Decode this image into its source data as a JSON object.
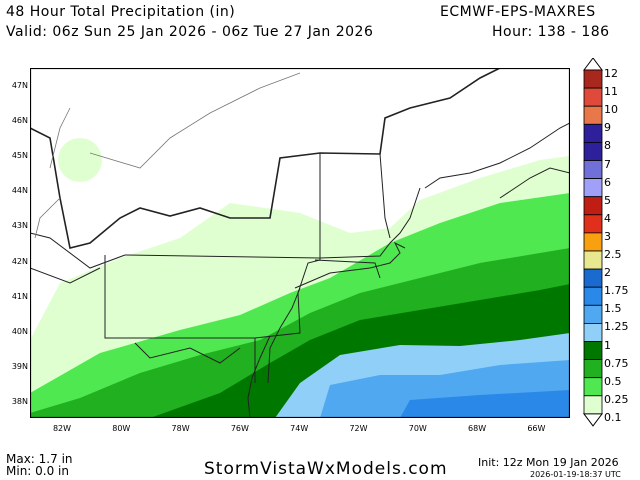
{
  "header": {
    "title": "48 Hour Total Precipitation (in)",
    "valid": "Valid: 06z Sun 25 Jan 2026 - 06z Tue 27 Jan 2026",
    "model": "ECMWF-EPS-MAXRES",
    "hours": "Hour: 138 - 186"
  },
  "map": {
    "lat_labels": [
      "47N",
      "46N",
      "45N",
      "44N",
      "43N",
      "42N",
      "41N",
      "40N",
      "39N",
      "38N"
    ],
    "lon_labels": [
      "82W",
      "80W",
      "78W",
      "76W",
      "74W",
      "72W",
      "70W",
      "68W",
      "66W"
    ]
  },
  "colorbar": {
    "labels": [
      "12",
      "11",
      "10",
      "9",
      "8",
      "7",
      "6",
      "5",
      "4",
      "3",
      "2.5",
      "2",
      "1.75",
      "1.5",
      "1.25",
      "1",
      "0.75",
      "0.5",
      "0.25",
      "0.1"
    ],
    "colors": [
      "#a8281e",
      "#e04a3a",
      "#e8784a",
      "#2e1f9a",
      "#2e1f9a",
      "#7070d8",
      "#a0a0f8",
      "#c01e14",
      "#e0301c",
      "#f8a010",
      "#e8e890",
      "#1a6ad0",
      "#2a88e8",
      "#50a8f0",
      "#90d0f8",
      "#007800",
      "#20b020",
      "#50e850",
      "#e0ffd0"
    ]
  },
  "footer": {
    "max": "Max: 1.7 in",
    "min": "Min: 0.0 in",
    "site": "StormVistaWxModels.com",
    "init": "Init: 12z Mon 19 Jan 2026",
    "generated": "2026-01-19-18:37 UTC"
  }
}
